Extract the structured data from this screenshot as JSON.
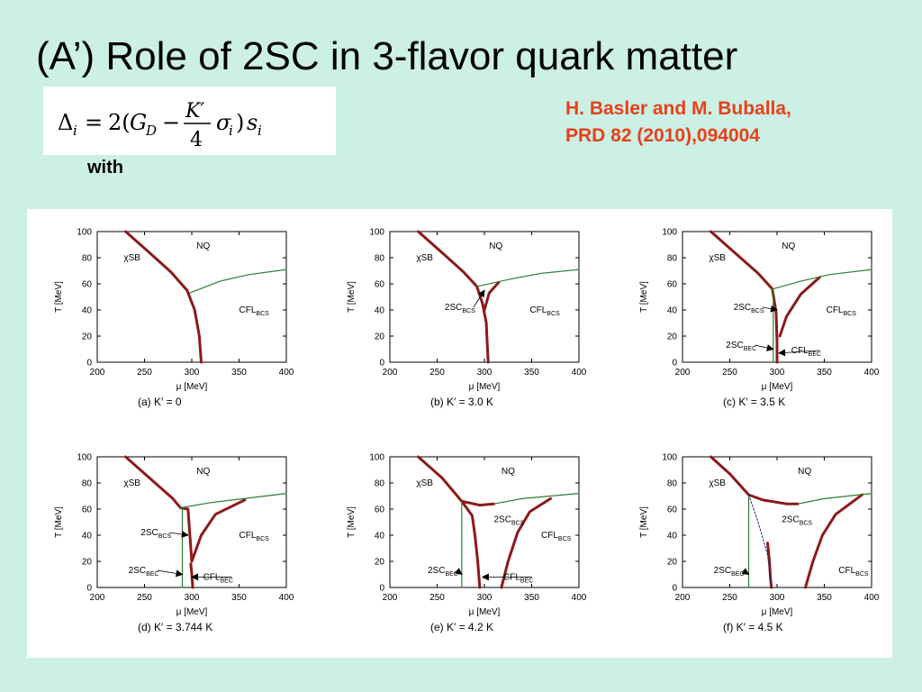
{
  "slide": {
    "title": "(A’) Role of 2SC in 3-flavor quark matter",
    "formula_text": "Δi = 2(GD − K′/4 σi) si",
    "with_label": "with",
    "reference_line1": "H. Basler and M. Buballa,",
    "reference_line2": "PRD  82 (2010),094004"
  },
  "chart_data": [
    {
      "type": "line",
      "caption": "(a) K′ = 0",
      "xlabel": "μ [MeV]",
      "ylabel": "T [MeV]",
      "xlim": [
        200,
        400
      ],
      "ylim": [
        0,
        100
      ],
      "xticks": [
        200,
        250,
        300,
        350,
        400
      ],
      "yticks": [
        0,
        20,
        40,
        60,
        80,
        100
      ],
      "series": [
        {
          "style": "first-order",
          "points": [
            [
              230,
              100
            ],
            [
              255,
              84
            ],
            [
              278,
              69
            ],
            [
              295,
              55
            ],
            [
              303,
              40
            ],
            [
              308,
              20
            ],
            [
              309,
              10
            ],
            [
              310,
              0
            ]
          ]
        },
        {
          "style": "second-order",
          "points": [
            [
              298,
              53
            ],
            [
              330,
              62
            ],
            [
              360,
              67
            ],
            [
              400,
              71
            ]
          ]
        }
      ],
      "annotations": [
        {
          "text": "NQ",
          "x": 305,
          "y": 87
        },
        {
          "text": "χSB",
          "x": 228,
          "y": 78
        },
        {
          "text": "CFL",
          "sub": "BCS",
          "x": 350,
          "y": 38
        }
      ]
    },
    {
      "type": "line",
      "caption": "(b) K′ = 3.0 K",
      "xlabel": "μ [MeV]",
      "ylabel": "T [MeV]",
      "xlim": [
        200,
        400
      ],
      "ylim": [
        0,
        100
      ],
      "xticks": [
        200,
        250,
        300,
        350,
        400
      ],
      "yticks": [
        0,
        20,
        40,
        60,
        80,
        100
      ],
      "series": [
        {
          "style": "first-order",
          "points": [
            [
              230,
              100
            ],
            [
              255,
              84
            ],
            [
              278,
              69
            ],
            [
              292,
              58
            ],
            [
              298,
              45
            ],
            [
              302,
              30
            ],
            [
              303,
              15
            ],
            [
              304,
              0
            ]
          ]
        },
        {
          "style": "first-order",
          "points": [
            [
              300,
              40
            ],
            [
              305,
              53
            ],
            [
              315,
              61
            ]
          ]
        },
        {
          "style": "second-order",
          "points": [
            [
              292,
              58
            ],
            [
              330,
              64
            ],
            [
              360,
              68
            ],
            [
              400,
              71
            ]
          ]
        }
      ],
      "annotations": [
        {
          "text": "NQ",
          "x": 305,
          "y": 87
        },
        {
          "text": "χSB",
          "x": 228,
          "y": 78
        },
        {
          "text": "2SC",
          "sub": "BCS",
          "x": 258,
          "y": 40,
          "arrow_to": [
            300,
            55
          ]
        },
        {
          "text": "CFL",
          "sub": "BCS",
          "x": 348,
          "y": 38
        }
      ]
    },
    {
      "type": "line",
      "caption": "(c) K′ = 3.5 K",
      "xlabel": "μ [MeV]",
      "ylabel": "T [MeV]",
      "xlim": [
        200,
        400
      ],
      "ylim": [
        0,
        100
      ],
      "xticks": [
        200,
        250,
        300,
        350,
        400
      ],
      "yticks": [
        0,
        20,
        40,
        60,
        80,
        100
      ],
      "series": [
        {
          "style": "first-order",
          "points": [
            [
              230,
              100
            ],
            [
              255,
              84
            ],
            [
              280,
              68
            ],
            [
              295,
              56
            ],
            [
              299,
              38
            ],
            [
              300,
              15
            ],
            [
              300,
              0
            ]
          ]
        },
        {
          "style": "first-order",
          "points": [
            [
              303,
              20
            ],
            [
              310,
              35
            ],
            [
              325,
              52
            ],
            [
              345,
              65
            ]
          ]
        },
        {
          "style": "second-order",
          "points": [
            [
              295,
              56
            ],
            [
              325,
              62
            ],
            [
              355,
              67
            ],
            [
              400,
              71
            ]
          ]
        },
        {
          "style": "second-order",
          "points": [
            [
              296,
              55
            ],
            [
              296,
              0
            ]
          ]
        }
      ],
      "annotations": [
        {
          "text": "NQ",
          "x": 305,
          "y": 87
        },
        {
          "text": "χSB",
          "x": 228,
          "y": 78
        },
        {
          "text": "2SC",
          "sub": "BCS",
          "x": 254,
          "y": 40,
          "arrow_to": [
            300,
            40
          ]
        },
        {
          "text": "2SC",
          "sub": "BEC",
          "x": 246,
          "y": 11,
          "arrow_to": [
            296,
            10
          ]
        },
        {
          "text": "CFL",
          "sub": "BEC",
          "x": 315,
          "y": 7,
          "arrow_to": [
            302,
            7
          ]
        },
        {
          "text": "CFL",
          "sub": "BCS",
          "x": 352,
          "y": 38
        }
      ]
    },
    {
      "type": "line",
      "caption": "(d) K′ = 3.744 K",
      "xlabel": "μ [MeV]",
      "ylabel": "T [MeV]",
      "xlim": [
        200,
        400
      ],
      "ylim": [
        0,
        100
      ],
      "xticks": [
        200,
        250,
        300,
        350,
        400
      ],
      "yticks": [
        0,
        20,
        40,
        60,
        80,
        100
      ],
      "series": [
        {
          "style": "first-order",
          "points": [
            [
              230,
              100
            ],
            [
              255,
              84
            ],
            [
              280,
              68
            ],
            [
              288,
              61
            ],
            [
              296,
              60
            ],
            [
              300,
              20
            ]
          ]
        },
        {
          "style": "first-order",
          "points": [
            [
              299,
              18
            ],
            [
              300,
              10
            ],
            [
              301,
              0
            ]
          ]
        },
        {
          "style": "first-order",
          "points": [
            [
              300,
              20
            ],
            [
              310,
              40
            ],
            [
              325,
              56
            ],
            [
              356,
              67
            ]
          ]
        },
        {
          "style": "second-order",
          "points": [
            [
              288,
              61
            ],
            [
              320,
              65
            ],
            [
              355,
              68
            ],
            [
              400,
              72
            ]
          ]
        },
        {
          "style": "second-order",
          "points": [
            [
              290,
              60
            ],
            [
              290,
              0
            ]
          ]
        }
      ],
      "annotations": [
        {
          "text": "NQ",
          "x": 305,
          "y": 87
        },
        {
          "text": "χSB",
          "x": 228,
          "y": 78
        },
        {
          "text": "2SC",
          "sub": "BCS",
          "x": 246,
          "y": 40,
          "arrow_to": [
            296,
            40
          ]
        },
        {
          "text": "2SC",
          "sub": "BEC",
          "x": 233,
          "y": 11,
          "arrow_to": [
            290,
            10
          ]
        },
        {
          "text": "CFL",
          "sub": "BEC",
          "x": 312,
          "y": 6,
          "arrow_to": [
            300,
            8
          ]
        },
        {
          "text": "CFL",
          "sub": "BCS",
          "x": 350,
          "y": 38
        }
      ]
    },
    {
      "type": "line",
      "caption": "(e) K′ = 4.2 K",
      "xlabel": "μ [MeV]",
      "ylabel": "T [MeV]",
      "xlim": [
        200,
        400
      ],
      "ylim": [
        0,
        100
      ],
      "xticks": [
        200,
        250,
        300,
        350,
        400
      ],
      "yticks": [
        0,
        20,
        40,
        60,
        80,
        100
      ],
      "series": [
        {
          "style": "first-order",
          "points": [
            [
              230,
              100
            ],
            [
              255,
              84
            ],
            [
              276,
              66
            ],
            [
              287,
              55
            ],
            [
              290,
              40
            ],
            [
              293,
              20
            ],
            [
              295,
              0
            ]
          ]
        },
        {
          "style": "first-order",
          "points": [
            [
              276,
              66
            ],
            [
              295,
              63
            ],
            [
              310,
              64
            ]
          ]
        },
        {
          "style": "first-order",
          "points": [
            [
              318,
              0
            ],
            [
              325,
              20
            ],
            [
              335,
              42
            ],
            [
              348,
              58
            ],
            [
              370,
              68
            ]
          ]
        },
        {
          "style": "second-order",
          "points": [
            [
              310,
              64
            ],
            [
              340,
              68
            ],
            [
              370,
              70
            ],
            [
              400,
              72
            ]
          ]
        },
        {
          "style": "second-order",
          "points": [
            [
              276,
              66
            ],
            [
              276,
              0
            ]
          ]
        }
      ],
      "annotations": [
        {
          "text": "NQ",
          "x": 318,
          "y": 87
        },
        {
          "text": "χSB",
          "x": 228,
          "y": 78
        },
        {
          "text": "2SC",
          "sub": "BCS",
          "x": 310,
          "y": 50
        },
        {
          "text": "2SC",
          "sub": "BEC",
          "x": 240,
          "y": 11,
          "arrow_to": [
            276,
            10
          ]
        },
        {
          "text": "CFL",
          "sub": "BEC",
          "x": 320,
          "y": 6,
          "arrow_to": [
            298,
            8
          ]
        },
        {
          "text": "CFL",
          "sub": "BCS",
          "x": 360,
          "y": 38
        }
      ]
    },
    {
      "type": "line",
      "caption": "(f) K′ = 4.5 K",
      "xlabel": "μ [MeV]",
      "ylabel": "T [MeV]",
      "xlim": [
        200,
        400
      ],
      "ylim": [
        0,
        100
      ],
      "xticks": [
        200,
        250,
        300,
        350,
        400
      ],
      "yticks": [
        0,
        20,
        40,
        60,
        80,
        100
      ],
      "series": [
        {
          "style": "first-order",
          "points": [
            [
              230,
              100
            ],
            [
              250,
              87
            ],
            [
              270,
              71
            ],
            [
              285,
              67
            ],
            [
              310,
              64
            ],
            [
              322,
              64
            ]
          ]
        },
        {
          "style": "first-order",
          "points": [
            [
              290,
              34
            ],
            [
              292,
              20
            ],
            [
              293,
              8
            ],
            [
              294,
              0
            ]
          ]
        },
        {
          "style": "first-order",
          "points": [
            [
              330,
              0
            ],
            [
              338,
              20
            ],
            [
              348,
              40
            ],
            [
              362,
              56
            ],
            [
              390,
              71
            ]
          ]
        },
        {
          "style": "second-order",
          "points": [
            [
              322,
              64
            ],
            [
              350,
              68
            ],
            [
              375,
              70
            ],
            [
              400,
              72
            ]
          ]
        },
        {
          "style": "second-order",
          "points": [
            [
              270,
              71
            ],
            [
              270,
              0
            ]
          ]
        },
        {
          "style": "crossover",
          "points": [
            [
              270,
              71
            ],
            [
              280,
              50
            ],
            [
              290,
              25
            ],
            [
              294,
              0
            ]
          ]
        }
      ],
      "annotations": [
        {
          "text": "NQ",
          "x": 322,
          "y": 87
        },
        {
          "text": "χSB",
          "x": 228,
          "y": 78
        },
        {
          "text": "2SC",
          "sub": "BCS",
          "x": 305,
          "y": 50
        },
        {
          "text": "2SC",
          "sub": "BEC",
          "x": 233,
          "y": 11,
          "arrow_to": [
            270,
            10
          ]
        },
        {
          "text": "CFL",
          "sub": "BCS",
          "x": 365,
          "y": 11
        }
      ]
    }
  ]
}
